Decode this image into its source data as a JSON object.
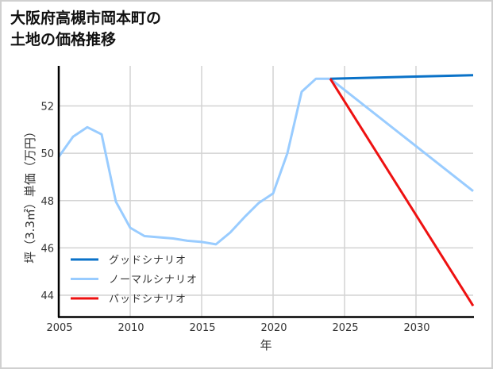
{
  "title": {
    "line1": "大阪府高槻市岡本町の",
    "line2": "土地の価格推移"
  },
  "chart_data": {
    "type": "line",
    "title": "大阪府高槻市岡本町の土地の価格推移",
    "xlabel": "年",
    "ylabel": "坪（3.3㎡）単価（万円）",
    "xlim": [
      2005,
      2034
    ],
    "ylim": [
      43.1,
      54.2
    ],
    "xticks": [
      "2005",
      "2010",
      "2015",
      "2020",
      "2025",
      "2030"
    ],
    "yticks": [
      "44",
      "46",
      "48",
      "50",
      "52"
    ],
    "grid": true,
    "legend_position": "lower left",
    "series": [
      {
        "name": "グッドシナリオ",
        "color": "#0a72c8",
        "x": [
          2024,
          2034
        ],
        "values": [
          53.15,
          53.3
        ]
      },
      {
        "name": "ノーマルシナリオ",
        "color": "#99ccff",
        "x": [
          2005,
          2006,
          2007,
          2008,
          2009,
          2010,
          2011,
          2012,
          2013,
          2014,
          2015,
          2016,
          2017,
          2018,
          2019,
          2020,
          2021,
          2022,
          2023,
          2024,
          2034
        ],
        "values": [
          49.85,
          50.7,
          51.1,
          50.8,
          47.95,
          46.85,
          46.5,
          46.45,
          46.4,
          46.3,
          46.25,
          46.15,
          46.65,
          47.3,
          47.9,
          48.3,
          50.0,
          52.6,
          53.15,
          53.15,
          48.4
        ]
      },
      {
        "name": "バッドシナリオ",
        "color": "#ee1111",
        "x": [
          2024,
          2034
        ],
        "values": [
          53.15,
          43.55
        ]
      }
    ]
  }
}
